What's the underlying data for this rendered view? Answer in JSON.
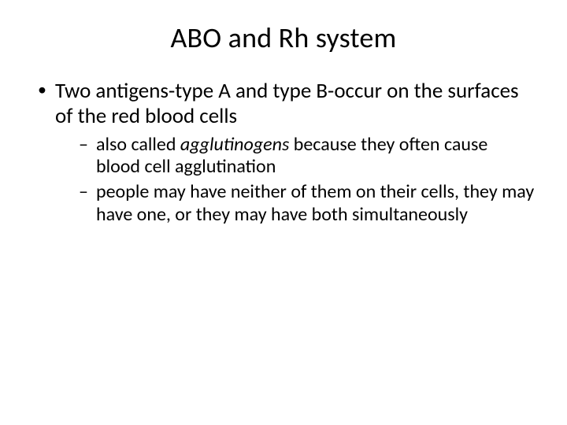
{
  "slide": {
    "title": "ABO and Rh system",
    "title_fontsize": 36,
    "body_fontsize_level1": 27,
    "body_fontsize_level2": 24,
    "text_color": "#000000",
    "background_color": "#ffffff",
    "bullets": [
      {
        "text": "Two antigens-type A and type B-occur on the surfaces of the red blood cells",
        "sub": [
          {
            "seg1": "also called ",
            "seg2_italic": "agglutinogens",
            "seg3": " because they often cause blood cell agglutination"
          },
          {
            "text": "people may have neither of them on their cells, they may have one, or they may have both simultaneously"
          }
        ]
      }
    ]
  }
}
